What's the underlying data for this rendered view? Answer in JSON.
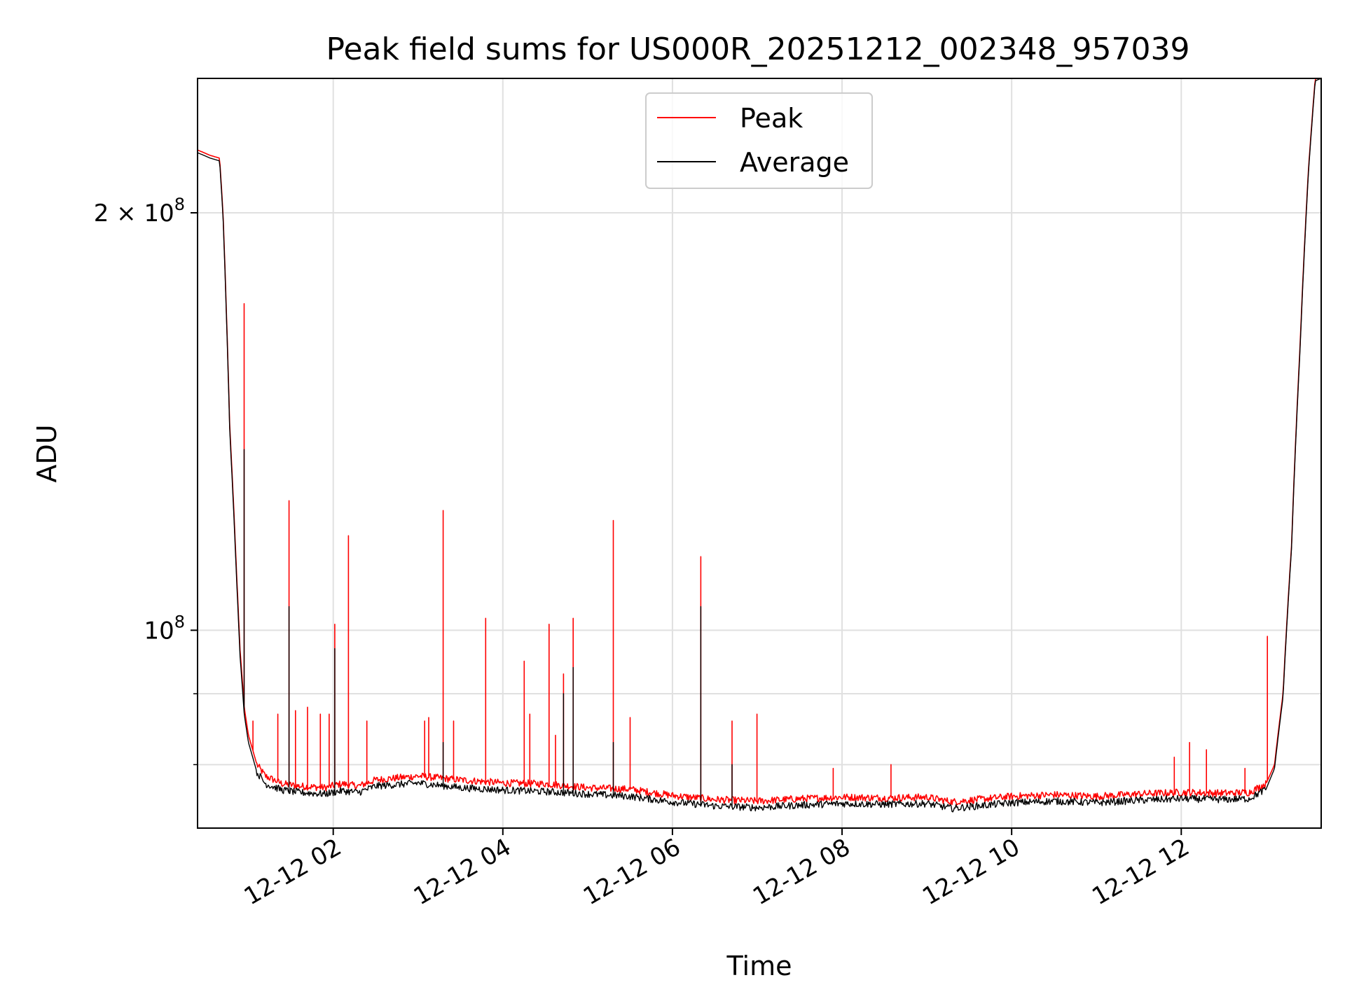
{
  "chart_data": {
    "type": "line",
    "title": "Peak field sums for US000R_20251212_002348_957039",
    "xlabel": "Time",
    "ylabel": "ADU",
    "yscale": "log",
    "ylim": [
      72000000,
      250000000
    ],
    "xlim_hours": [
      0.4,
      13.65
    ],
    "x_unit": "hours since 2025-12-12 00:00",
    "grid": true,
    "legend_position": "top-center",
    "x_ticks": [
      {
        "hour": 2,
        "label": "12-12 02"
      },
      {
        "hour": 4,
        "label": "12-12 04"
      },
      {
        "hour": 6,
        "label": "12-12 06"
      },
      {
        "hour": 8,
        "label": "12-12 08"
      },
      {
        "hour": 10,
        "label": "12-12 10"
      },
      {
        "hour": 12,
        "label": "12-12 12"
      }
    ],
    "y_major_ticks": [
      {
        "value": 100000000,
        "base": "10",
        "exp": "8",
        "coef": ""
      },
      {
        "value": 200000000,
        "base": "10",
        "exp": "8",
        "coef": "2 × "
      }
    ],
    "y_minor_ticks": [
      80000000,
      90000000
    ],
    "series": [
      {
        "name": "Peak",
        "color": "#ff0000",
        "points": [
          [
            0.4,
            222000000
          ],
          [
            0.55,
            220000000
          ],
          [
            0.66,
            219000000
          ],
          [
            0.7,
            200000000
          ],
          [
            0.78,
            140000000
          ],
          [
            0.82,
            125000000
          ],
          [
            0.86,
            110000000
          ],
          [
            0.9,
            97000000
          ],
          [
            0.95,
            88000000
          ],
          [
            1.0,
            84000000
          ],
          [
            1.1,
            80000000
          ],
          [
            1.2,
            78500000
          ],
          [
            1.4,
            77500000
          ],
          [
            1.6,
            77200000
          ],
          [
            1.9,
            77000000
          ],
          [
            2.1,
            77500000
          ],
          [
            2.3,
            77200000
          ],
          [
            2.5,
            78000000
          ],
          [
            3.0,
            78500000
          ],
          [
            3.5,
            78000000
          ],
          [
            4.0,
            77600000
          ],
          [
            4.5,
            77500000
          ],
          [
            5.0,
            77000000
          ],
          [
            5.5,
            76800000
          ],
          [
            6.0,
            76000000
          ],
          [
            6.5,
            75500000
          ],
          [
            7.0,
            75300000
          ],
          [
            7.5,
            75600000
          ],
          [
            8.0,
            75800000
          ],
          [
            8.5,
            75700000
          ],
          [
            9.0,
            75800000
          ],
          [
            9.3,
            75200000
          ],
          [
            9.6,
            75500000
          ],
          [
            10.0,
            75900000
          ],
          [
            10.5,
            76100000
          ],
          [
            11.0,
            75900000
          ],
          [
            11.5,
            76200000
          ],
          [
            12.0,
            76400000
          ],
          [
            12.5,
            76300000
          ],
          [
            12.8,
            76400000
          ],
          [
            13.0,
            77500000
          ],
          [
            13.1,
            80000000
          ],
          [
            13.2,
            90000000
          ],
          [
            13.3,
            115000000
          ],
          [
            13.4,
            160000000
          ],
          [
            13.5,
            215000000
          ],
          [
            13.58,
            250000000
          ],
          [
            13.65,
            250000000
          ]
        ],
        "spikes": [
          [
            0.95,
            172000000
          ],
          [
            1.48,
            124000000
          ],
          [
            2.18,
            117000000
          ],
          [
            1.05,
            86000000
          ],
          [
            1.35,
            87000000
          ],
          [
            1.55,
            87500000
          ],
          [
            1.7,
            88000000
          ],
          [
            1.85,
            87000000
          ],
          [
            1.95,
            87000000
          ],
          [
            2.02,
            101000000
          ],
          [
            2.4,
            86000000
          ],
          [
            3.08,
            86000000
          ],
          [
            3.13,
            86500000
          ],
          [
            3.3,
            122000000
          ],
          [
            3.42,
            86000000
          ],
          [
            3.8,
            102000000
          ],
          [
            4.25,
            95000000
          ],
          [
            4.32,
            87000000
          ],
          [
            4.55,
            101000000
          ],
          [
            4.62,
            84000000
          ],
          [
            4.72,
            93000000
          ],
          [
            4.83,
            102000000
          ],
          [
            5.3,
            120000000
          ],
          [
            5.5,
            86500000
          ],
          [
            6.33,
            113000000
          ],
          [
            6.7,
            86000000
          ],
          [
            7.0,
            87000000
          ],
          [
            7.9,
            79500000
          ],
          [
            8.58,
            80000000
          ],
          [
            11.92,
            81000000
          ],
          [
            12.1,
            83000000
          ],
          [
            12.3,
            82000000
          ],
          [
            12.75,
            79500000
          ],
          [
            13.02,
            99000000
          ]
        ]
      },
      {
        "name": "Average",
        "color": "#000000",
        "points": [
          [
            0.4,
            221000000
          ],
          [
            0.55,
            219000000
          ],
          [
            0.66,
            218000000
          ],
          [
            0.7,
            199000000
          ],
          [
            0.78,
            139000000
          ],
          [
            0.82,
            124000000
          ],
          [
            0.86,
            109000000
          ],
          [
            0.9,
            96000000
          ],
          [
            0.95,
            87000000
          ],
          [
            1.0,
            83000000
          ],
          [
            1.1,
            79000000
          ],
          [
            1.2,
            77500000
          ],
          [
            1.4,
            76700000
          ],
          [
            1.6,
            76400000
          ],
          [
            1.9,
            76200000
          ],
          [
            2.1,
            76600000
          ],
          [
            2.3,
            76400000
          ],
          [
            2.5,
            77200000
          ],
          [
            3.0,
            77600000
          ],
          [
            3.5,
            77000000
          ],
          [
            4.0,
            76700000
          ],
          [
            4.5,
            76500000
          ],
          [
            5.0,
            76200000
          ],
          [
            5.5,
            75900000
          ],
          [
            6.0,
            75200000
          ],
          [
            6.5,
            74700000
          ],
          [
            7.0,
            74500000
          ],
          [
            7.5,
            74800000
          ],
          [
            8.0,
            75000000
          ],
          [
            8.5,
            74900000
          ],
          [
            9.0,
            75000000
          ],
          [
            9.3,
            74400000
          ],
          [
            9.6,
            74700000
          ],
          [
            10.0,
            75100000
          ],
          [
            10.5,
            75300000
          ],
          [
            11.0,
            75100000
          ],
          [
            11.5,
            75400000
          ],
          [
            12.0,
            75600000
          ],
          [
            12.5,
            75500000
          ],
          [
            12.8,
            75600000
          ],
          [
            13.0,
            76800000
          ],
          [
            13.1,
            79500000
          ],
          [
            13.2,
            89500000
          ],
          [
            13.3,
            114500000
          ],
          [
            13.4,
            159000000
          ],
          [
            13.5,
            214000000
          ],
          [
            13.58,
            249000000
          ],
          [
            13.65,
            250000000
          ]
        ],
        "spikes": [
          [
            0.95,
            135000000
          ],
          [
            1.48,
            104000000
          ],
          [
            2.02,
            97000000
          ],
          [
            3.3,
            83000000
          ],
          [
            4.83,
            94000000
          ],
          [
            5.3,
            83000000
          ],
          [
            6.33,
            104000000
          ],
          [
            4.72,
            90000000
          ],
          [
            6.7,
            80000000
          ]
        ]
      }
    ]
  }
}
